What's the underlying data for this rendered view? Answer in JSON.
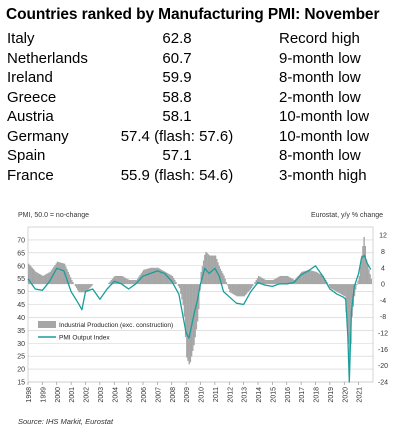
{
  "title": "Countries ranked by Manufacturing PMI: November",
  "ranking": [
    {
      "country": "Italy",
      "pmi": "62.8",
      "note": "Record high"
    },
    {
      "country": "Netherlands",
      "pmi": "60.7",
      "note": "9-month low"
    },
    {
      "country": "Ireland",
      "pmi": "59.9",
      "note": "8-month low"
    },
    {
      "country": "Greece",
      "pmi": "58.8",
      "note": "2-month low"
    },
    {
      "country": "Austria",
      "pmi": "58.1",
      "note": "10-month low"
    },
    {
      "country": "Germany",
      "pmi": "57.4 (flash: 57.6)",
      "note": "10-month low"
    },
    {
      "country": "Spain",
      "pmi": "57.1",
      "note": "8-month low"
    },
    {
      "country": "France",
      "pmi": "55.9 (flash: 54.6)",
      "note": "3-month high"
    }
  ],
  "chart_data": {
    "type": "line",
    "left_axis_label": "PMI, 50.0 = no-change",
    "right_axis_label": "Eurostat, y/y % change",
    "x_ticks": [
      "1998",
      "1999",
      "2000",
      "2001",
      "2002",
      "2003",
      "2004",
      "2005",
      "2006",
      "2007",
      "2008",
      "2009",
      "2010",
      "2011",
      "2012",
      "2013",
      "2014",
      "2015",
      "2016",
      "2017",
      "2018",
      "2019",
      "2020",
      "2021"
    ],
    "left_ylim": [
      15,
      75
    ],
    "left_ticks": [
      15,
      20,
      25,
      30,
      35,
      40,
      45,
      50,
      55,
      60,
      65,
      70
    ],
    "right_ylim": [
      -24,
      14
    ],
    "right_ticks": [
      -24,
      -20,
      -16,
      -12,
      -8,
      -4,
      0,
      4,
      8,
      12
    ],
    "legend": [
      "Industrial Production (exc. construction)",
      "PMI Output Index"
    ],
    "colors": {
      "ip": "#a6a6a6",
      "pmi": "#1a9e9c",
      "grid": "#d0d0d0"
    },
    "pmi_series": {
      "name": "PMI Output Index",
      "x": [
        1998.0,
        1998.5,
        1999.0,
        1999.5,
        2000.0,
        2000.5,
        2001.0,
        2001.5,
        2001.75,
        2002.0,
        2002.5,
        2003.0,
        2003.5,
        2004.0,
        2004.5,
        2005.0,
        2005.5,
        2006.0,
        2006.5,
        2007.0,
        2007.5,
        2008.0,
        2008.5,
        2008.8,
        2009.0,
        2009.2,
        2009.5,
        2009.8,
        2010.0,
        2010.3,
        2010.6,
        2011.0,
        2011.3,
        2011.6,
        2012.0,
        2012.5,
        2013.0,
        2013.5,
        2014.0,
        2014.5,
        2015.0,
        2015.5,
        2016.0,
        2016.5,
        2017.0,
        2017.5,
        2018.0,
        2018.5,
        2019.0,
        2019.5,
        2019.9,
        2020.1,
        2020.25,
        2020.35,
        2020.5,
        2020.7,
        2021.0,
        2021.2,
        2021.4,
        2021.6,
        2021.85
      ],
      "values": [
        55,
        51,
        50.5,
        54,
        59,
        58,
        50,
        45.5,
        43,
        50,
        51,
        47,
        51,
        54,
        53,
        51,
        53,
        56,
        57,
        58,
        57,
        54,
        49,
        40,
        34,
        32,
        40,
        47,
        53,
        59,
        57,
        59,
        56,
        50,
        48,
        45.5,
        45,
        50,
        53.5,
        52.5,
        52,
        53,
        53,
        53.5,
        56.5,
        58,
        60,
        56,
        51,
        49,
        48,
        47,
        33,
        15,
        42,
        52,
        57,
        63,
        64,
        61,
        58.5
      ]
    },
    "ip_series": {
      "name": "Industrial Production (exc. construction)",
      "x": [
        1998.0,
        1998.5,
        1999.0,
        1999.5,
        2000.0,
        2000.5,
        2001.0,
        2001.5,
        2002.0,
        2002.5,
        2003.0,
        2003.5,
        2004.0,
        2004.5,
        2005.0,
        2005.5,
        2006.0,
        2006.5,
        2007.0,
        2007.5,
        2008.0,
        2008.5,
        2008.8,
        2009.0,
        2009.2,
        2009.5,
        2009.8,
        2010.0,
        2010.3,
        2010.6,
        2011.0,
        2011.3,
        2011.6,
        2012.0,
        2012.5,
        2013.0,
        2013.5,
        2014.0,
        2014.5,
        2015.0,
        2015.5,
        2016.0,
        2016.5,
        2017.0,
        2017.5,
        2018.0,
        2018.5,
        2019.0,
        2019.5,
        2020.0,
        2020.2,
        2020.35,
        2020.5,
        2020.7,
        2021.0,
        2021.2,
        2021.35,
        2021.5,
        2021.85
      ],
      "values": [
        5,
        3,
        2,
        3,
        5.5,
        5,
        1,
        -2,
        -2,
        0,
        0,
        0,
        2,
        2,
        1,
        1,
        3.5,
        4,
        4,
        3,
        2,
        -1,
        -6,
        -18,
        -20,
        -15,
        -8,
        3,
        8,
        7,
        7,
        4,
        2,
        -2,
        -3,
        -3,
        -1,
        2,
        1,
        1,
        2,
        2,
        1,
        3,
        3.5,
        3,
        2,
        -1,
        -2,
        -3,
        -12,
        -20,
        -8,
        -2,
        2,
        8,
        12,
        6,
        1
      ]
    }
  },
  "source": "Source: IHS Markit, Eurostat"
}
